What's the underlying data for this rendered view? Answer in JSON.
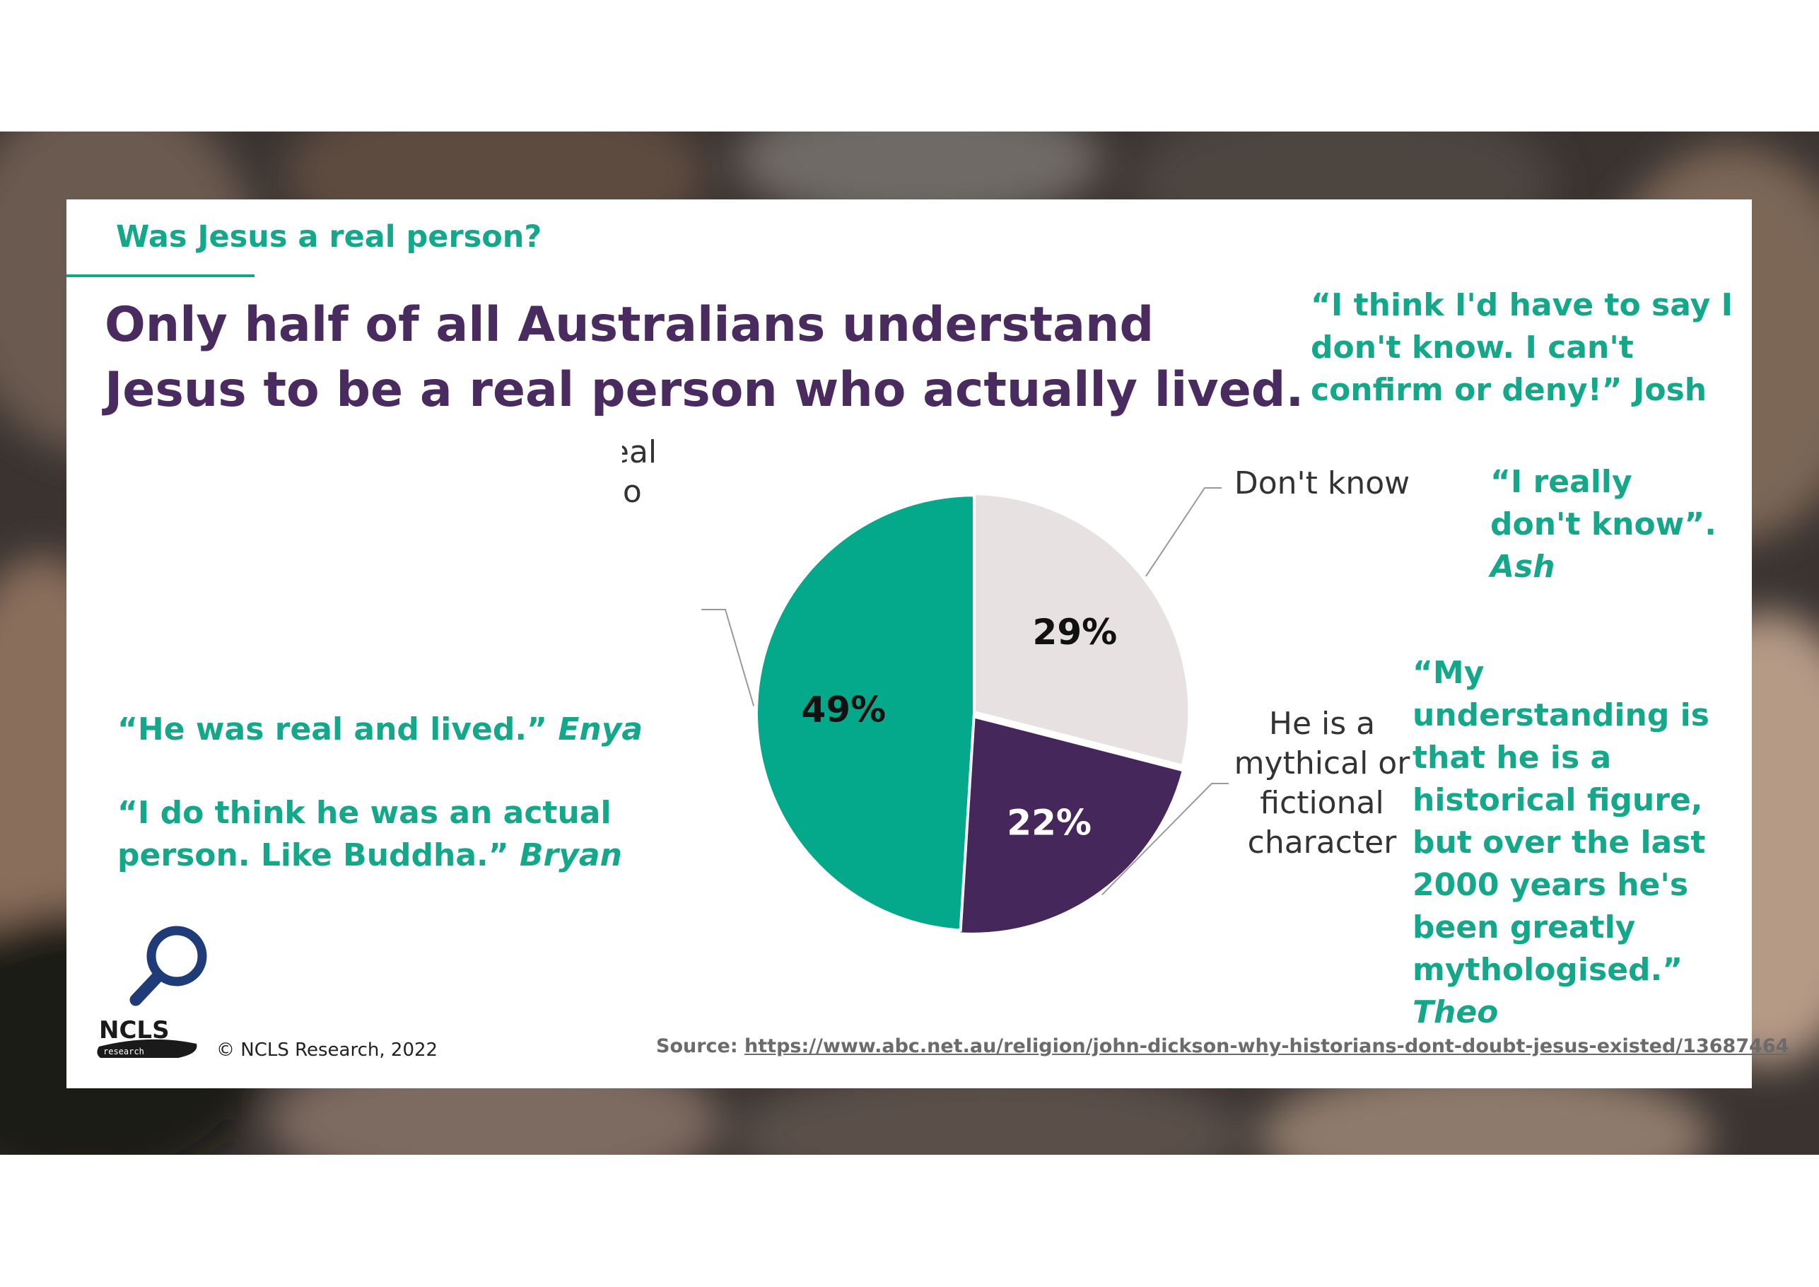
{
  "slide": {
    "kicker": "Was Jesus a real person?",
    "headline": "Only half of all Australians understand Jesus to be a real person who actually lived."
  },
  "quotes": {
    "josh": {
      "text": "“I think I'd have to say I don't know. I can't confirm or deny!”",
      "who": " Josh"
    },
    "ash": {
      "text": "“I really don't know”. ",
      "who": "Ash"
    },
    "theo": {
      "text": "“My understanding is that he is a historical figure, but over the last 2000 years he's been greatly mythologised.”",
      "who": "Theo"
    },
    "enya": {
      "text": "“He was real and lived.” ",
      "who": "Enya"
    },
    "bryan": {
      "text": "“I do think he was an actual person. Like Buddha.” ",
      "who": "Bryan"
    }
  },
  "chart_data": {
    "type": "pie",
    "slices": [
      {
        "label": "Don't know",
        "value": 29,
        "display": "29%",
        "color": "#e7e2e1",
        "text_color": "#111111"
      },
      {
        "label": "He is a mythical or fictional character",
        "value": 22,
        "display": "22%",
        "color": "#45275b",
        "text_color": "#ffffff"
      },
      {
        "label": "He was a real person who actually lived",
        "value": 49,
        "display": "49%",
        "color": "#04a88a",
        "text_color": "#111111"
      }
    ]
  },
  "footer": {
    "copyright": "© NCLS Research, 2022",
    "source_label": "Source: ",
    "source_url": "https://www.abc.net.au/religion/john-dickson-why-historians-dont-doubt-jesus-existed/13687464"
  },
  "logo": {
    "text": "NCLS",
    "subtext": "research"
  },
  "icons": {
    "magnifier": "magnifier-icon"
  }
}
